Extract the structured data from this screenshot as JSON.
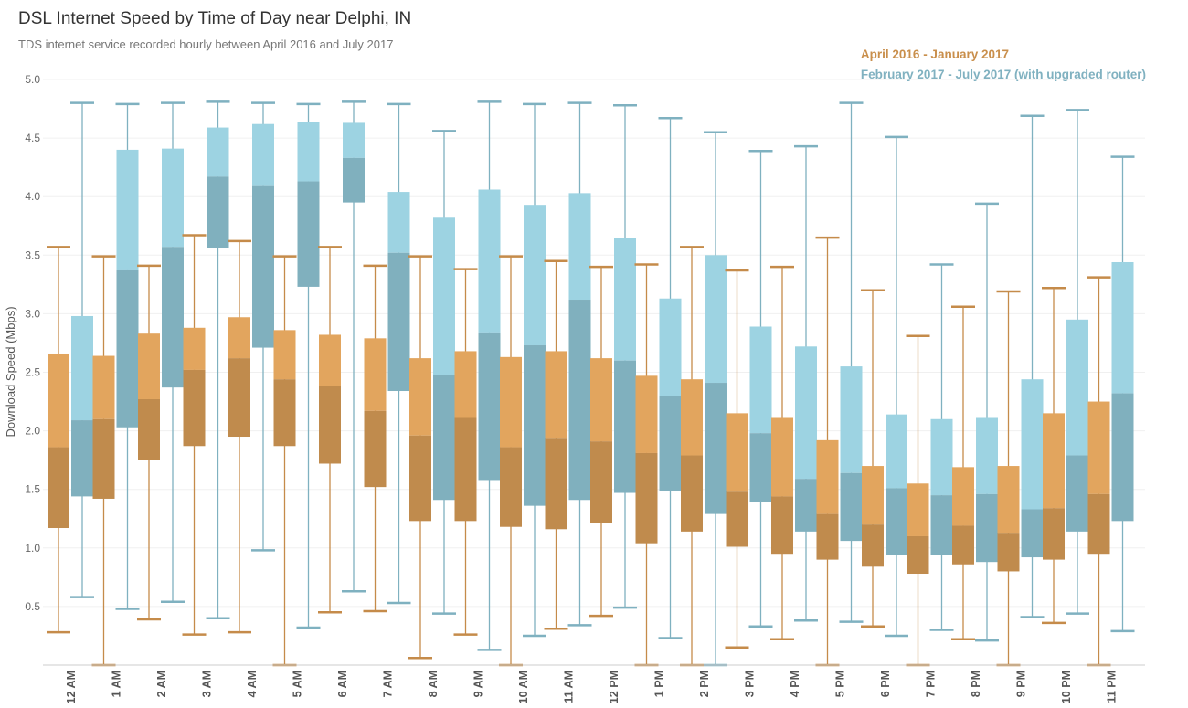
{
  "title": "DSL Internet Speed by Time of Day near Delphi, IN",
  "subtitle": "TDS internet service recorded hourly between April 2016 and July 2017",
  "legend": [
    {
      "label": "April 2016 - January 2017",
      "color": "#c98f4c"
    },
    {
      "label": "February 2017 - July 2017 (with upgraded router)",
      "color": "#80b1c0"
    }
  ],
  "chart_data": {
    "type": "boxplot",
    "ylabel": "Download Speed (Mbps)",
    "ylim": [
      0.0,
      5.0
    ],
    "yticks": [
      "5.0",
      "4.5",
      "4.0",
      "3.5",
      "3.0",
      "2.5",
      "2.0",
      "1.5",
      "1.0",
      "0.5"
    ],
    "ytick_values": [
      5.0,
      4.5,
      4.0,
      3.5,
      3.0,
      2.5,
      2.0,
      1.5,
      1.0,
      0.5
    ],
    "categories": [
      "12 AM",
      "1 AM",
      "2 AM",
      "3 AM",
      "4 AM",
      "5 AM",
      "6 AM",
      "7 AM",
      "8 AM",
      "9 AM",
      "10 AM",
      "11 AM",
      "12 PM",
      "1 PM",
      "2 PM",
      "3 PM",
      "4 PM",
      "5 PM",
      "6 PM",
      "7 PM",
      "8 PM",
      "9 PM",
      "10 PM",
      "11 PM"
    ],
    "series": [
      {
        "name": "April 2016 - January 2017",
        "colors": {
          "upper": "#e2a55e",
          "lower": "#c08b4d",
          "whisker": "#c58b4a"
        },
        "boxes": [
          {
            "min": 0.28,
            "q1": 1.17,
            "median": 1.86,
            "q3": 2.66,
            "max": 3.57
          },
          {
            "min": 0.0,
            "q1": 1.42,
            "median": 2.1,
            "q3": 2.64,
            "max": 3.49
          },
          {
            "min": 0.39,
            "q1": 1.75,
            "median": 2.27,
            "q3": 2.83,
            "max": 3.41
          },
          {
            "min": 0.26,
            "q1": 1.87,
            "median": 2.52,
            "q3": 2.88,
            "max": 3.67
          },
          {
            "min": 0.28,
            "q1": 1.95,
            "median": 2.62,
            "q3": 2.97,
            "max": 3.62
          },
          {
            "min": 0.0,
            "q1": 1.87,
            "median": 2.44,
            "q3": 2.86,
            "max": 3.49
          },
          {
            "min": 0.45,
            "q1": 1.72,
            "median": 2.38,
            "q3": 2.82,
            "max": 3.57
          },
          {
            "min": 0.46,
            "q1": 1.52,
            "median": 2.17,
            "q3": 2.79,
            "max": 3.41
          },
          {
            "min": 0.06,
            "q1": 1.23,
            "median": 1.96,
            "q3": 2.62,
            "max": 3.49
          },
          {
            "min": 0.26,
            "q1": 1.23,
            "median": 2.11,
            "q3": 2.68,
            "max": 3.38
          },
          {
            "min": 0.0,
            "q1": 1.18,
            "median": 1.86,
            "q3": 2.63,
            "max": 3.49
          },
          {
            "min": 0.31,
            "q1": 1.16,
            "median": 1.94,
            "q3": 2.68,
            "max": 3.45
          },
          {
            "min": 0.42,
            "q1": 1.21,
            "median": 1.91,
            "q3": 2.62,
            "max": 3.4
          },
          {
            "min": 0.0,
            "q1": 1.04,
            "median": 1.81,
            "q3": 2.47,
            "max": 3.42
          },
          {
            "min": 0.0,
            "q1": 1.14,
            "median": 1.79,
            "q3": 2.44,
            "max": 3.57
          },
          {
            "min": 0.15,
            "q1": 1.01,
            "median": 1.48,
            "q3": 2.15,
            "max": 3.37
          },
          {
            "min": 0.22,
            "q1": 0.95,
            "median": 1.44,
            "q3": 2.11,
            "max": 3.4
          },
          {
            "min": 0.0,
            "q1": 0.9,
            "median": 1.29,
            "q3": 1.92,
            "max": 3.65
          },
          {
            "min": 0.33,
            "q1": 0.84,
            "median": 1.2,
            "q3": 1.7,
            "max": 3.2
          },
          {
            "min": 0.0,
            "q1": 0.78,
            "median": 1.1,
            "q3": 1.55,
            "max": 2.81
          },
          {
            "min": 0.22,
            "q1": 0.86,
            "median": 1.19,
            "q3": 1.69,
            "max": 3.06
          },
          {
            "min": 0.0,
            "q1": 0.8,
            "median": 1.13,
            "q3": 1.7,
            "max": 3.19
          },
          {
            "min": 0.36,
            "q1": 0.9,
            "median": 1.34,
            "q3": 2.15,
            "max": 3.22
          },
          {
            "min": 0.0,
            "q1": 0.95,
            "median": 1.46,
            "q3": 2.25,
            "max": 3.31
          }
        ]
      },
      {
        "name": "February 2017 - July 2017 (with upgraded router)",
        "colors": {
          "upper": "#9dd3e2",
          "lower": "#80b0be",
          "whisker": "#7fb1c0"
        },
        "boxes": [
          {
            "min": 0.58,
            "q1": 1.44,
            "median": 2.09,
            "q3": 2.98,
            "max": 4.8
          },
          {
            "min": 0.48,
            "q1": 2.03,
            "median": 3.37,
            "q3": 4.4,
            "max": 4.79
          },
          {
            "min": 0.54,
            "q1": 2.37,
            "median": 3.57,
            "q3": 4.41,
            "max": 4.8
          },
          {
            "min": 0.4,
            "q1": 3.56,
            "median": 4.17,
            "q3": 4.59,
            "max": 4.81
          },
          {
            "min": 0.98,
            "q1": 2.71,
            "median": 4.09,
            "q3": 4.62,
            "max": 4.8
          },
          {
            "min": 0.32,
            "q1": 3.23,
            "median": 4.13,
            "q3": 4.64,
            "max": 4.79
          },
          {
            "min": 0.63,
            "q1": 3.95,
            "median": 4.33,
            "q3": 4.63,
            "max": 4.81
          },
          {
            "min": 0.53,
            "q1": 2.34,
            "median": 3.52,
            "q3": 4.04,
            "max": 4.79
          },
          {
            "min": 0.44,
            "q1": 1.41,
            "median": 2.48,
            "q3": 3.82,
            "max": 4.56
          },
          {
            "min": 0.13,
            "q1": 1.58,
            "median": 2.84,
            "q3": 4.06,
            "max": 4.81
          },
          {
            "min": 0.25,
            "q1": 1.36,
            "median": 2.73,
            "q3": 3.93,
            "max": 4.79
          },
          {
            "min": 0.34,
            "q1": 1.41,
            "median": 3.12,
            "q3": 4.03,
            "max": 4.8
          },
          {
            "min": 0.49,
            "q1": 1.47,
            "median": 2.6,
            "q3": 3.65,
            "max": 4.78
          },
          {
            "min": 0.23,
            "q1": 1.49,
            "median": 2.3,
            "q3": 3.13,
            "max": 4.67
          },
          {
            "min": 0.0,
            "q1": 1.29,
            "median": 2.41,
            "q3": 3.5,
            "max": 4.55
          },
          {
            "min": 0.33,
            "q1": 1.39,
            "median": 1.98,
            "q3": 2.89,
            "max": 4.39
          },
          {
            "min": 0.38,
            "q1": 1.14,
            "median": 1.59,
            "q3": 2.72,
            "max": 4.43
          },
          {
            "min": 0.37,
            "q1": 1.06,
            "median": 1.64,
            "q3": 2.55,
            "max": 4.8
          },
          {
            "min": 0.25,
            "q1": 0.94,
            "median": 1.51,
            "q3": 2.14,
            "max": 4.51
          },
          {
            "min": 0.3,
            "q1": 0.94,
            "median": 1.45,
            "q3": 2.1,
            "max": 3.42
          },
          {
            "min": 0.21,
            "q1": 0.88,
            "median": 1.46,
            "q3": 2.11,
            "max": 3.94
          },
          {
            "min": 0.41,
            "q1": 0.92,
            "median": 1.33,
            "q3": 2.44,
            "max": 4.69
          },
          {
            "min": 0.44,
            "q1": 1.14,
            "median": 1.79,
            "q3": 2.95,
            "max": 4.74
          },
          {
            "min": 0.29,
            "q1": 1.23,
            "median": 2.32,
            "q3": 3.44,
            "max": 4.34
          }
        ]
      }
    ]
  }
}
